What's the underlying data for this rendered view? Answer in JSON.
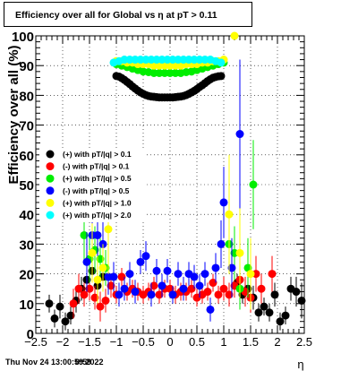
{
  "title": "Efficiency over all for Global vs   η at pT > 0.11",
  "footer": {
    "timestamp": "Thu Nov 24 13:00:59 2022",
    "overlay": "0:59"
  },
  "chart_data": {
    "type": "scatter",
    "title": "Efficiency over all for Global vs   η at pT > 0.11",
    "xlabel": "η",
    "ylabel": "Efficiency over all (%)",
    "xlim": [
      -2.5,
      2.5
    ],
    "ylim": [
      0,
      100
    ],
    "x_ticks": [
      "−2.5",
      "−2",
      "−1.5",
      "−1",
      "−0.5",
      "0",
      "0.5",
      "1",
      "1.5",
      "2",
      "2.5"
    ],
    "y_ticks": [
      "0",
      "10",
      "20",
      "30",
      "40",
      "50",
      "60",
      "70",
      "80",
      "90",
      "100"
    ],
    "grid": true,
    "legend_position": "middle-left",
    "series": [
      {
        "name": "(+) with pT/|q| > 0.1",
        "color": "#000000",
        "points": [
          [
            -2.25,
            10,
            3
          ],
          [
            -2.15,
            5,
            3
          ],
          [
            -2.05,
            9,
            4
          ],
          [
            -1.95,
            4,
            3
          ],
          [
            -1.85,
            6,
            3
          ],
          [
            -1.75,
            11,
            4
          ],
          [
            -1.65,
            15,
            4
          ],
          [
            -1.55,
            18,
            4
          ],
          [
            -1.45,
            21,
            4
          ],
          [
            -1.35,
            16,
            3
          ],
          [
            -1.25,
            19,
            3
          ],
          [
            -1.0,
            86.5,
            0.5
          ],
          [
            -0.95,
            86.3,
            0.5
          ],
          [
            -0.9,
            85.8,
            0.5
          ],
          [
            -0.85,
            85.2,
            0.5
          ],
          [
            -0.8,
            84.5,
            0.5
          ],
          [
            -0.75,
            83.8,
            0.5
          ],
          [
            -0.7,
            83.0,
            0.5
          ],
          [
            -0.65,
            82.3,
            0.5
          ],
          [
            -0.6,
            81.6,
            0.5
          ],
          [
            -0.55,
            81.0,
            0.5
          ],
          [
            -0.5,
            80.5,
            0.5
          ],
          [
            -0.45,
            80.1,
            0.5
          ],
          [
            -0.4,
            79.8,
            0.5
          ],
          [
            -0.35,
            79.6,
            0.5
          ],
          [
            -0.3,
            79.5,
            0.5
          ],
          [
            -0.25,
            79.4,
            0.5
          ],
          [
            -0.2,
            79.3,
            0.5
          ],
          [
            -0.15,
            79.3,
            0.5
          ],
          [
            -0.1,
            79.3,
            0.5
          ],
          [
            -0.05,
            79.3,
            0.5
          ],
          [
            0.0,
            79.3,
            0.5
          ],
          [
            0.05,
            79.3,
            0.5
          ],
          [
            0.1,
            79.4,
            0.5
          ],
          [
            0.15,
            79.5,
            0.5
          ],
          [
            0.2,
            79.6,
            0.5
          ],
          [
            0.25,
            79.8,
            0.5
          ],
          [
            0.3,
            80.1,
            0.5
          ],
          [
            0.35,
            80.5,
            0.5
          ],
          [
            0.4,
            81.0,
            0.5
          ],
          [
            0.45,
            81.5,
            0.5
          ],
          [
            0.5,
            82.1,
            0.5
          ],
          [
            0.55,
            82.8,
            0.5
          ],
          [
            0.6,
            83.4,
            0.5
          ],
          [
            0.65,
            84.1,
            0.5
          ],
          [
            0.7,
            84.8,
            0.5
          ],
          [
            0.75,
            85.4,
            0.5
          ],
          [
            0.8,
            85.9,
            0.5
          ],
          [
            0.85,
            86.2,
            0.5
          ],
          [
            0.9,
            86.4,
            0.5
          ],
          [
            0.95,
            86.5,
            0.5
          ],
          [
            1.25,
            17,
            3
          ],
          [
            1.35,
            13,
            3
          ],
          [
            1.45,
            15,
            4
          ],
          [
            1.55,
            12,
            4
          ],
          [
            1.65,
            7,
            3
          ],
          [
            1.75,
            9,
            3
          ],
          [
            1.85,
            7,
            3
          ],
          [
            1.95,
            13,
            4
          ],
          [
            2.05,
            4,
            3
          ],
          [
            2.15,
            6,
            3
          ],
          [
            2.25,
            15,
            4
          ],
          [
            2.35,
            14,
            5
          ],
          [
            2.45,
            11,
            6
          ]
        ]
      },
      {
        "name": "(-) with pT/|q| > 0.1",
        "color": "#ff0000",
        "points": [
          [
            -1.8,
            10,
            5
          ],
          [
            -1.7,
            15,
            5
          ],
          [
            -1.6,
            13,
            4
          ],
          [
            -1.5,
            15,
            4
          ],
          [
            -1.4,
            12,
            4
          ],
          [
            -1.3,
            9,
            5
          ],
          [
            -1.2,
            11,
            4
          ],
          [
            -1.1,
            16,
            4
          ],
          [
            -1.0,
            13,
            3
          ],
          [
            -0.9,
            19,
            3
          ],
          [
            -0.8,
            14,
            3
          ],
          [
            -0.7,
            15,
            3
          ],
          [
            -0.6,
            14,
            3
          ],
          [
            -0.5,
            13,
            3
          ],
          [
            -0.4,
            14,
            3
          ],
          [
            -0.3,
            16,
            3
          ],
          [
            -0.2,
            13,
            3
          ],
          [
            -0.1,
            15,
            3
          ],
          [
            0.0,
            15,
            3
          ],
          [
            0.1,
            13,
            3
          ],
          [
            0.2,
            14,
            3
          ],
          [
            0.3,
            14,
            3
          ],
          [
            0.4,
            15,
            3
          ],
          [
            0.5,
            12,
            3
          ],
          [
            0.6,
            13,
            3
          ],
          [
            0.7,
            14,
            3
          ],
          [
            0.8,
            17,
            3
          ],
          [
            0.9,
            13,
            3
          ],
          [
            1.0,
            15,
            4
          ],
          [
            1.1,
            13,
            4
          ],
          [
            1.2,
            16,
            4
          ],
          [
            1.3,
            18,
            5
          ],
          [
            1.4,
            14,
            5
          ],
          [
            1.5,
            12,
            5
          ],
          [
            1.6,
            20,
            6
          ],
          [
            1.7,
            15,
            5
          ],
          [
            1.9,
            20,
            6
          ]
        ]
      },
      {
        "name": "(+) with pT/|q| > 0.5",
        "color": "#00ee00",
        "points": [
          [
            -1.6,
            33,
            10
          ],
          [
            -1.5,
            25,
            8
          ],
          [
            -1.4,
            28,
            8
          ],
          [
            -1.3,
            25,
            7
          ],
          [
            -1.2,
            22,
            6
          ],
          [
            -1.0,
            90.5,
            1
          ],
          [
            -0.9,
            90.0,
            1
          ],
          [
            -0.8,
            89.5,
            1
          ],
          [
            -0.7,
            89.0,
            1
          ],
          [
            -0.6,
            88.5,
            1
          ],
          [
            -0.5,
            88.0,
            1
          ],
          [
            -0.4,
            87.8,
            1
          ],
          [
            -0.3,
            87.5,
            1
          ],
          [
            -0.2,
            87.5,
            1
          ],
          [
            -0.1,
            87.5,
            1
          ],
          [
            0.0,
            87.5,
            1
          ],
          [
            0.1,
            87.5,
            1
          ],
          [
            0.2,
            87.5,
            1
          ],
          [
            0.3,
            87.8,
            1
          ],
          [
            0.4,
            88.0,
            1
          ],
          [
            0.5,
            88.5,
            1
          ],
          [
            0.6,
            89.0,
            1
          ],
          [
            0.7,
            89.5,
            1
          ],
          [
            0.8,
            90.0,
            1
          ],
          [
            0.9,
            90.5,
            1
          ],
          [
            1.0,
            91.0,
            1
          ],
          [
            1.1,
            30,
            10
          ],
          [
            1.2,
            27,
            9
          ],
          [
            1.3,
            15,
            7
          ],
          [
            1.45,
            22,
            10
          ],
          [
            1.55,
            50,
            15
          ]
        ]
      },
      {
        "name": "(-) with pT/|q| > 0.5",
        "color": "#0000ff",
        "points": [
          [
            -1.55,
            24,
            10
          ],
          [
            -1.45,
            33,
            12
          ],
          [
            -1.35,
            33,
            12
          ],
          [
            -1.25,
            30,
            10
          ],
          [
            -1.15,
            19,
            6
          ],
          [
            -1.05,
            19,
            5
          ],
          [
            -0.95,
            13,
            4
          ],
          [
            -0.85,
            15,
            4
          ],
          [
            -0.75,
            20,
            4
          ],
          [
            -0.65,
            14,
            4
          ],
          [
            -0.55,
            24,
            4
          ],
          [
            -0.45,
            26,
            5
          ],
          [
            -0.35,
            13,
            4
          ],
          [
            -0.25,
            21,
            4
          ],
          [
            -0.15,
            16,
            4
          ],
          [
            -0.05,
            21,
            4
          ],
          [
            0.05,
            13,
            3
          ],
          [
            0.15,
            20,
            4
          ],
          [
            0.25,
            15,
            4
          ],
          [
            0.35,
            20,
            4
          ],
          [
            0.45,
            19,
            4
          ],
          [
            0.55,
            16,
            4
          ],
          [
            0.65,
            20,
            4
          ],
          [
            0.75,
            8,
            4
          ],
          [
            0.85,
            22,
            5
          ],
          [
            0.95,
            30,
            8
          ],
          [
            1.0,
            44,
            12
          ],
          [
            1.15,
            22,
            10
          ],
          [
            1.3,
            67,
            25
          ]
        ]
      },
      {
        "name": "(+) with pT/|q| > 1.0",
        "color": "#ffff00",
        "points": [
          [
            -1.45,
            27,
            10
          ],
          [
            -1.35,
            18,
            8
          ],
          [
            -1.25,
            22,
            8
          ],
          [
            -1.15,
            35,
            15
          ],
          [
            -1.0,
            91.5,
            1
          ],
          [
            -0.9,
            91.5,
            1
          ],
          [
            -0.8,
            91.0,
            1
          ],
          [
            -0.7,
            91.0,
            1
          ],
          [
            -0.6,
            90.5,
            1
          ],
          [
            -0.5,
            90.5,
            1
          ],
          [
            -0.4,
            90.5,
            1
          ],
          [
            -0.3,
            90.0,
            1
          ],
          [
            -0.2,
            90.0,
            1
          ],
          [
            -0.1,
            90.0,
            1
          ],
          [
            0.0,
            90.0,
            1
          ],
          [
            0.1,
            90.0,
            1
          ],
          [
            0.2,
            90.0,
            1
          ],
          [
            0.3,
            90.5,
            1
          ],
          [
            0.4,
            90.5,
            1
          ],
          [
            0.5,
            90.5,
            1
          ],
          [
            0.6,
            91.0,
            1
          ],
          [
            0.7,
            91.0,
            1
          ],
          [
            0.8,
            91.5,
            1
          ],
          [
            0.9,
            91.5,
            1
          ],
          [
            1.0,
            92.0,
            1
          ],
          [
            1.1,
            40,
            20
          ],
          [
            1.2,
            100,
            0
          ],
          [
            1.3,
            27,
            15
          ],
          [
            1.5,
            20,
            12
          ]
        ]
      },
      {
        "name": "(+) with pT/|q| > 2.0",
        "color": "#00ffff",
        "points": [
          [
            -1.05,
            91.0,
            1
          ],
          [
            -0.95,
            91.5,
            1
          ],
          [
            -0.85,
            92.0,
            1
          ],
          [
            -0.75,
            92.0,
            1
          ],
          [
            -0.65,
            92.0,
            1
          ],
          [
            -0.55,
            92.0,
            1
          ],
          [
            -0.45,
            92.0,
            1
          ],
          [
            -0.35,
            92.0,
            1
          ],
          [
            -0.25,
            92.0,
            1
          ],
          [
            -0.15,
            92.0,
            1
          ],
          [
            -0.05,
            92.0,
            1
          ],
          [
            0.05,
            92.0,
            1
          ],
          [
            0.15,
            92.0,
            1
          ],
          [
            0.25,
            92.0,
            1
          ],
          [
            0.35,
            92.0,
            1
          ],
          [
            0.45,
            92.0,
            1
          ],
          [
            0.55,
            92.0,
            1
          ],
          [
            0.65,
            92.0,
            1
          ],
          [
            0.75,
            92.0,
            1
          ],
          [
            0.85,
            91.5,
            1
          ],
          [
            0.95,
            91.0,
            1
          ]
        ]
      }
    ]
  }
}
